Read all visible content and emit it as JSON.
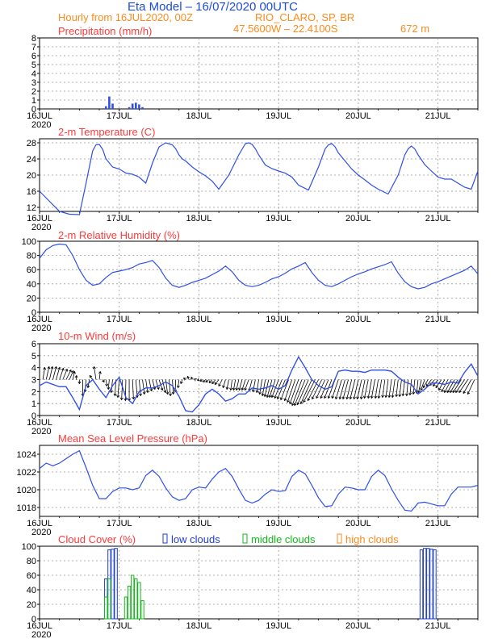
{
  "header": {
    "title": "Eta Model – 16/07/2020 00UTC",
    "subtitle": "Hourly from 16JUL2020, 00Z",
    "location": "RIO_CLARO, SP, BR",
    "coords": "47.5600W – 22.4100S",
    "elevation": "672  m"
  },
  "colors": {
    "title": "#1e4be0",
    "header": "#ff8a1c",
    "panel_title": "#ff3a3a",
    "line": "#2f4fe8",
    "precip_bar": "#2f4fe8",
    "low_clouds": "#1e3fd0",
    "middle_clouds": "#12b81a",
    "high_clouds": "#ff8a1c",
    "grid": "#999999",
    "axis": "#000000"
  },
  "x_axis": {
    "days": [
      "16JUL",
      "17JUL",
      "18JUL",
      "19JUL",
      "20JUL",
      "21JUL"
    ],
    "year_label": "2020",
    "range_hours": [
      0,
      132
    ]
  },
  "cloud_legend": {
    "low": "low clouds",
    "middle": "middle clouds",
    "high": "high clouds"
  },
  "chart_data": [
    {
      "id": "precip",
      "type": "bar",
      "title": "Precipitation (mm/h)",
      "ylim": [
        0,
        8
      ],
      "yticks": [
        0,
        1,
        2,
        3,
        4,
        5,
        6,
        7,
        8
      ],
      "x_hours": [
        20,
        21,
        22,
        27,
        28,
        29,
        30,
        31
      ],
      "values": [
        0.3,
        1.4,
        0.6,
        0.2,
        0.6,
        0.7,
        0.5,
        0.2
      ]
    },
    {
      "id": "temp",
      "type": "line",
      "title": "2-m Temperature (C)",
      "ylim": [
        11,
        29
      ],
      "yticks": [
        12,
        16,
        20,
        24,
        28
      ],
      "x_hours": [
        0,
        3,
        6,
        9,
        12,
        14,
        16,
        17,
        18,
        19,
        20,
        22,
        24,
        26,
        28,
        30,
        32,
        34,
        36,
        38,
        40,
        41,
        42,
        43,
        44,
        46,
        48,
        50,
        52,
        54,
        57,
        60,
        62,
        63,
        64,
        65,
        66,
        68,
        70,
        72,
        74,
        76,
        78,
        81,
        84,
        86,
        87,
        88,
        89,
        90,
        92,
        94,
        96,
        98,
        100,
        102,
        105,
        108,
        110,
        111,
        112,
        113,
        114,
        116,
        118,
        120,
        122,
        124,
        126,
        128,
        130,
        132
      ],
      "values": [
        16,
        13.5,
        11,
        10.3,
        10.2,
        18,
        26,
        27.5,
        27.6,
        26.4,
        24,
        22,
        21.5,
        20.5,
        20.2,
        19.5,
        18,
        23,
        27,
        28,
        27.5,
        26.5,
        25,
        24,
        23.5,
        22,
        20.8,
        19.8,
        18.5,
        16.5,
        20,
        25,
        27.8,
        28,
        27.6,
        26.5,
        25,
        22.5,
        21.6,
        21,
        20.5,
        19.5,
        17.5,
        16.3,
        22,
        26.5,
        27.5,
        27.8,
        27,
        25.5,
        23.5,
        21.5,
        20,
        18.8,
        17.5,
        16.5,
        15.3,
        20,
        25,
        26.5,
        27.2,
        26.5,
        25,
        22.6,
        21,
        19.5,
        19,
        19,
        18,
        17,
        16.5,
        21
      ]
    },
    {
      "id": "rh",
      "type": "line",
      "title": "2-m Relative Humidity (%)",
      "ylim": [
        0,
        100
      ],
      "yticks": [
        0,
        20,
        40,
        60,
        80,
        100
      ],
      "x_hours": [
        0,
        2,
        4,
        6,
        8,
        10,
        12,
        14,
        16,
        18,
        20,
        22,
        24,
        26,
        28,
        30,
        32,
        34,
        36,
        38,
        40,
        42,
        44,
        46,
        48,
        50,
        52,
        54,
        56,
        58,
        60,
        62,
        64,
        66,
        68,
        70,
        72,
        74,
        76,
        78,
        80,
        82,
        84,
        86,
        88,
        90,
        92,
        94,
        96,
        98,
        100,
        102,
        104,
        106,
        108,
        110,
        112,
        114,
        116,
        118,
        120,
        122,
        124,
        126,
        128,
        130,
        132
      ],
      "values": [
        76,
        88,
        94,
        96,
        95,
        80,
        60,
        45,
        38,
        40,
        49,
        56,
        58,
        60,
        63,
        68,
        70,
        73,
        63,
        48,
        38,
        35,
        38,
        42,
        45,
        48,
        53,
        58,
        65,
        57,
        45,
        38,
        36,
        38,
        42,
        47,
        50,
        55,
        61,
        65,
        70,
        56,
        45,
        38,
        36,
        40,
        45,
        50,
        54,
        57,
        61,
        64,
        67,
        71,
        55,
        43,
        36,
        33,
        35,
        40,
        43,
        47,
        51,
        55,
        59,
        65,
        54
      ]
    },
    {
      "id": "wind",
      "type": "line",
      "title": "10-m Wind (m/s)",
      "ylim": [
        0,
        6
      ],
      "yticks": [
        0,
        1,
        2,
        3,
        4,
        5,
        6
      ],
      "arrow_baseline": 3,
      "x_hours": [
        0,
        2,
        4,
        6,
        8,
        10,
        12,
        14,
        16,
        18,
        20,
        22,
        24,
        26,
        28,
        30,
        32,
        34,
        36,
        38,
        40,
        42,
        44,
        46,
        48,
        50,
        52,
        54,
        56,
        58,
        60,
        62,
        64,
        66,
        68,
        70,
        72,
        74,
        76,
        78,
        80,
        82,
        84,
        86,
        88,
        90,
        92,
        94,
        96,
        98,
        100,
        102,
        104,
        106,
        108,
        110,
        112,
        114,
        116,
        118,
        120,
        122,
        124,
        126,
        128,
        130,
        132
      ],
      "values": [
        2.5,
        2.8,
        2.6,
        2.4,
        2.4,
        1.5,
        0.5,
        2.5,
        3,
        2.2,
        1.5,
        2.5,
        3.2,
        1.5,
        1,
        2,
        2.3,
        2.3,
        2.5,
        2.8,
        2.5,
        1.6,
        0.4,
        0.3,
        0.9,
        1.8,
        2.2,
        1.8,
        1.2,
        1.4,
        1.8,
        1.8,
        2.3,
        2.2,
        2.3,
        2.5,
        2.2,
        2.5,
        3.8,
        4.9,
        4,
        3,
        2.5,
        2.2,
        2.4,
        3.7,
        3.8,
        3.7,
        3.7,
        3.6,
        3.8,
        3.8,
        3.8,
        3.7,
        3.2,
        2.8,
        2.6,
        1.8,
        2.2,
        2.7,
        2.7,
        2.6,
        2.8,
        2.7,
        3.6,
        4.3,
        3.3
      ],
      "arrow_hours": [
        1,
        2,
        3,
        4,
        5,
        6,
        7,
        8,
        9,
        10,
        11,
        12,
        13,
        14,
        15,
        16,
        17,
        18,
        19,
        20,
        21,
        22,
        23,
        24,
        25,
        26,
        27,
        28,
        29,
        30,
        31,
        32,
        33,
        34,
        35,
        36,
        37,
        38,
        39,
        40,
        41,
        42,
        43,
        44,
        45,
        46,
        47,
        48,
        49,
        50,
        51,
        52,
        53,
        54,
        55,
        56,
        57,
        58,
        59,
        60,
        61,
        62,
        63,
        64,
        65,
        66,
        67,
        68,
        69,
        70,
        71,
        72,
        73,
        74,
        75,
        76,
        77,
        78,
        79,
        80,
        81,
        82,
        83,
        84,
        85,
        86,
        87,
        88,
        89,
        90,
        91,
        92,
        93,
        94,
        95,
        96,
        97,
        98,
        99,
        100,
        101,
        102,
        103,
        104,
        105,
        106,
        107,
        108,
        109,
        110,
        111,
        112,
        113,
        114,
        115,
        116,
        117,
        118,
        119,
        120,
        121,
        122,
        123,
        124,
        125,
        126,
        127,
        128,
        129,
        130,
        131
      ],
      "arrow_u": [
        0.4,
        0.6,
        0.6,
        0.7,
        0.7,
        0.8,
        0.9,
        1,
        0.8,
        0.4,
        0.1,
        0,
        0,
        -0.2,
        -0.3,
        -0.6,
        -0.4,
        0.2,
        0.3,
        0.2,
        -0.2,
        -0.3,
        -0.2,
        -0.3,
        -0.2,
        -0.1,
        0,
        0.2,
        0.3,
        0.3,
        0.4,
        0.4,
        0.5,
        0.5,
        0.6,
        0.7,
        0.6,
        0.4,
        0.3,
        0.2,
        -0.1,
        -0.2,
        -0.3,
        -0.4,
        -0.3,
        -0.2,
        -0.2,
        -0.3,
        -0.4,
        -0.5,
        -0.6,
        -0.6,
        -0.7,
        -0.8,
        -0.7,
        -0.5,
        -0.4,
        -0.3,
        -0.4,
        -0.5,
        -0.6,
        -0.7,
        -0.8,
        -0.6,
        -0.5,
        -0.4,
        -0.5,
        -0.6,
        -0.8,
        -1,
        -1.2,
        -1.4,
        -1.5,
        -1.6,
        -1.6,
        -1.5,
        -1.6,
        -1.8,
        -2,
        -2.2,
        -2.3,
        -2.3,
        -2.4,
        -2.2,
        -2,
        -1.8,
        -1.6,
        -1.5,
        -1.4,
        -1.3,
        -1.2,
        -1.1,
        -1.1,
        -1,
        -1,
        -0.9,
        -0.9,
        -0.8,
        -0.8,
        -0.7,
        -0.7,
        -0.6,
        -0.6,
        -0.5,
        -0.5,
        -0.5,
        -0.5,
        -0.4,
        -0.4,
        -0.4,
        -0.3,
        -0.3,
        -0.3,
        -0.3,
        -0.6,
        -0.8,
        -1,
        -1,
        -1,
        -1,
        -1.1,
        -1.2,
        -1.3,
        -1.4,
        -1.5,
        -1.6,
        -1.7,
        -1.8,
        -1.8,
        -1.6,
        -1.4
      ],
      "arrow_v": [
        1.5,
        1.6,
        1.6,
        1.6,
        1.5,
        1.4,
        1.3,
        1.2,
        1.1,
        1,
        0.5,
        -0.5,
        -2,
        -1.5,
        -1,
        0.5,
        1.6,
        1,
        -0.3,
        -0.8,
        -1.2,
        -1.6,
        -2,
        -2.2,
        -2.5,
        -2.6,
        -2.6,
        -2.4,
        -2.2,
        -2,
        -1.8,
        -1.6,
        -1.4,
        -1.2,
        -1.2,
        -1.3,
        -1.6,
        -1.8,
        -2,
        -1.8,
        -1.5,
        -1,
        -0.5,
        0.2,
        0.4,
        0.3,
        0.1,
        -0.1,
        -0.2,
        -0.3,
        -0.3,
        -0.4,
        -0.5,
        -0.6,
        -0.8,
        -1,
        -1.2,
        -1.3,
        -1.3,
        -1.3,
        -1.3,
        -1.3,
        -1.3,
        -1.4,
        -1.5,
        -1.6,
        -1.8,
        -2,
        -2.1,
        -2.2,
        -2.2,
        -2.2,
        -2.3,
        -2.4,
        -2.5,
        -2.6,
        -2.8,
        -3,
        -3.2,
        -3.2,
        -3.1,
        -3,
        -2.8,
        -2.6,
        -2.4,
        -2.3,
        -2.3,
        -2.3,
        -2.3,
        -2.3,
        -2.4,
        -2.4,
        -2.4,
        -2.4,
        -2.4,
        -2.4,
        -2.4,
        -2.4,
        -2.3,
        -2.3,
        -2.3,
        -2.3,
        -2.3,
        -2.2,
        -2.2,
        -2.2,
        -2.2,
        -2.1,
        -2.1,
        -2,
        -2,
        -1.9,
        -1.8,
        -1.7,
        -1.6,
        -1.3,
        -1,
        -0.8,
        -0.7,
        -0.8,
        -1,
        -1.3,
        -1.5,
        -1.6,
        -1.6,
        -1.6,
        -1.6,
        -1.6,
        -1.6,
        -1.7,
        -1.8
      ]
    },
    {
      "id": "mslp",
      "type": "line",
      "title": "Mean Sea Level Pressure (hPa)",
      "ylim": [
        1017,
        1025
      ],
      "yticks": [
        1018,
        1020,
        1022,
        1024
      ],
      "x_hours": [
        0,
        2,
        4,
        6,
        8,
        10,
        12,
        14,
        16,
        18,
        20,
        22,
        24,
        26,
        28,
        30,
        32,
        34,
        36,
        38,
        40,
        42,
        44,
        46,
        48,
        50,
        52,
        54,
        56,
        58,
        60,
        62,
        64,
        66,
        68,
        70,
        72,
        74,
        76,
        78,
        80,
        82,
        84,
        86,
        88,
        90,
        92,
        94,
        96,
        98,
        100,
        102,
        104,
        106,
        108,
        110,
        112,
        114,
        116,
        118,
        120,
        122,
        124,
        126,
        128,
        130,
        132
      ],
      "values": [
        1022.4,
        1023,
        1022.7,
        1023,
        1023.5,
        1024,
        1024.4,
        1022.5,
        1020.5,
        1019,
        1019,
        1019.8,
        1020.2,
        1020.2,
        1020,
        1020.2,
        1021.6,
        1022.2,
        1021.5,
        1020.2,
        1019.2,
        1018.8,
        1019,
        1020,
        1020.3,
        1020.2,
        1021.2,
        1022,
        1022.4,
        1021.5,
        1020.1,
        1018.8,
        1018.5,
        1018.8,
        1019.5,
        1020,
        1019.8,
        1019.9,
        1021.5,
        1022.2,
        1021.8,
        1020.5,
        1019.1,
        1018.1,
        1018.2,
        1019.5,
        1020.3,
        1020.2,
        1020,
        1020,
        1021.5,
        1022.2,
        1021.6,
        1020.1,
        1018.8,
        1017.7,
        1017.6,
        1018.5,
        1018.6,
        1018.4,
        1018.2,
        1018.2,
        1019.5,
        1020.3,
        1020.3,
        1020.3,
        1020.5
      ],
      "extra_points": [
        [
          0.5,
          1022.9
        ]
      ]
    },
    {
      "id": "cloud",
      "type": "bar",
      "title": "Cloud Cover (%)",
      "ylim": [
        0,
        100
      ],
      "yticks": [
        0,
        20,
        40,
        60,
        80,
        100
      ],
      "low_hours": [
        20,
        21,
        22,
        23,
        115,
        116,
        117,
        118,
        119
      ],
      "low_values": [
        55,
        95,
        96,
        97,
        95,
        97,
        97,
        96,
        95
      ],
      "middle_hours": [
        20,
        21,
        26,
        27,
        28,
        29,
        30,
        31
      ],
      "middle_values": [
        30,
        55,
        30,
        45,
        60,
        55,
        50,
        25
      ],
      "high_hours": [],
      "high_values": []
    }
  ]
}
